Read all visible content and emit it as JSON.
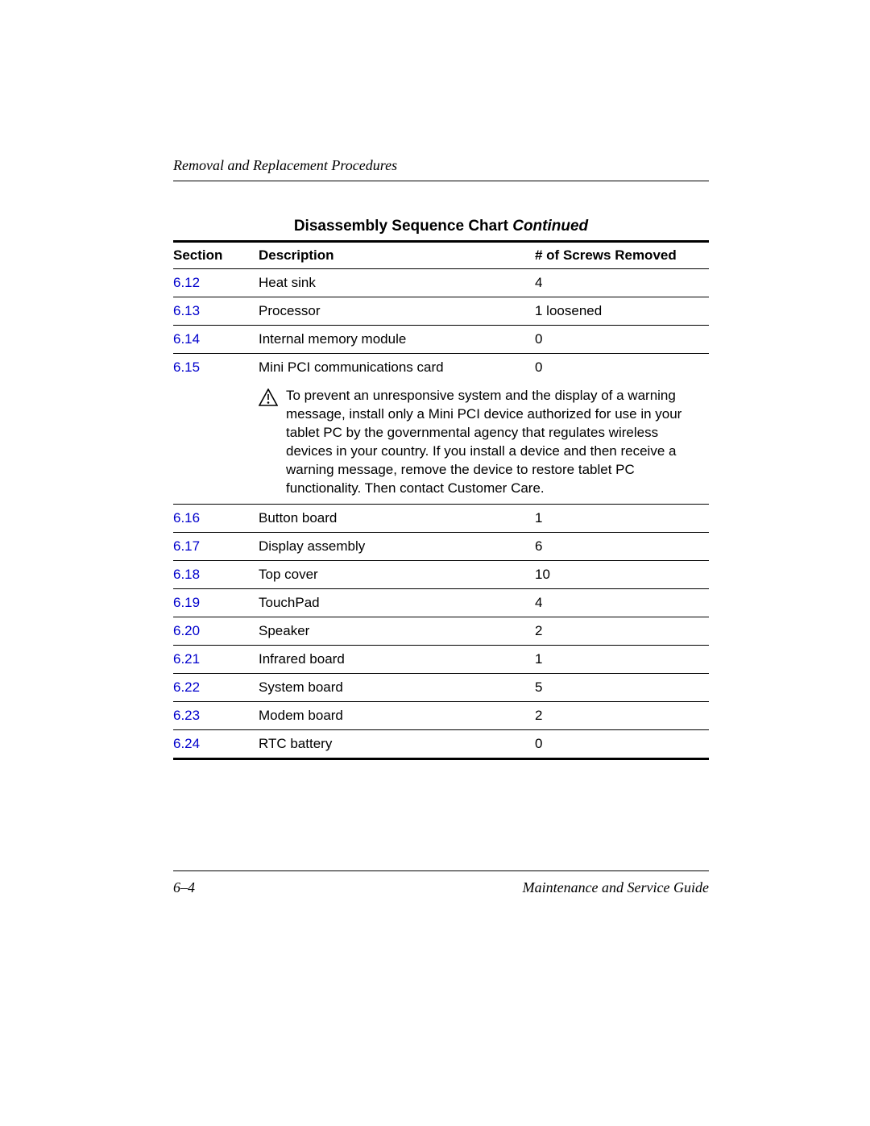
{
  "header": {
    "running_head": "Removal and Replacement Procedures"
  },
  "chart": {
    "title_main": "Disassembly Sequence Chart",
    "title_suffix": " Continued",
    "columns": {
      "section": "Section",
      "description": "Description",
      "screws": "# of Screws Removed"
    },
    "link_color": "#0000cc",
    "text_color": "#000000",
    "rows": [
      {
        "section": "6.12",
        "description": "Heat sink",
        "screws": "4"
      },
      {
        "section": "6.13",
        "description": "Processor",
        "screws": "1 loosened"
      },
      {
        "section": "6.14",
        "description": "Internal memory module",
        "screws": "0"
      },
      {
        "section": "6.15",
        "description": "Mini PCI communications card",
        "screws": "0",
        "warning": "To prevent an unresponsive system and the display of a warning message, install only a Mini PCI device authorized for use in your tablet PC by the governmental agency that regulates wireless devices in your country. If you install a device and then receive a warning message, remove the device to restore tablet PC functionality. Then contact Customer Care."
      },
      {
        "section": "6.16",
        "description": "Button board",
        "screws": "1"
      },
      {
        "section": "6.17",
        "description": "Display assembly",
        "screws": "6"
      },
      {
        "section": "6.18",
        "description": "Top cover",
        "screws": "10"
      },
      {
        "section": "6.19",
        "description": "TouchPad",
        "screws": "4"
      },
      {
        "section": "6.20",
        "description": "Speaker",
        "screws": "2"
      },
      {
        "section": "6.21",
        "description": "Infrared board",
        "screws": "1"
      },
      {
        "section": "6.22",
        "description": "System board",
        "screws": "5"
      },
      {
        "section": "6.23",
        "description": "Modem board",
        "screws": "2"
      },
      {
        "section": "6.24",
        "description": "RTC battery",
        "screws": "0"
      }
    ]
  },
  "footer": {
    "page_number": "6–4",
    "doc_title": "Maintenance and Service Guide"
  }
}
